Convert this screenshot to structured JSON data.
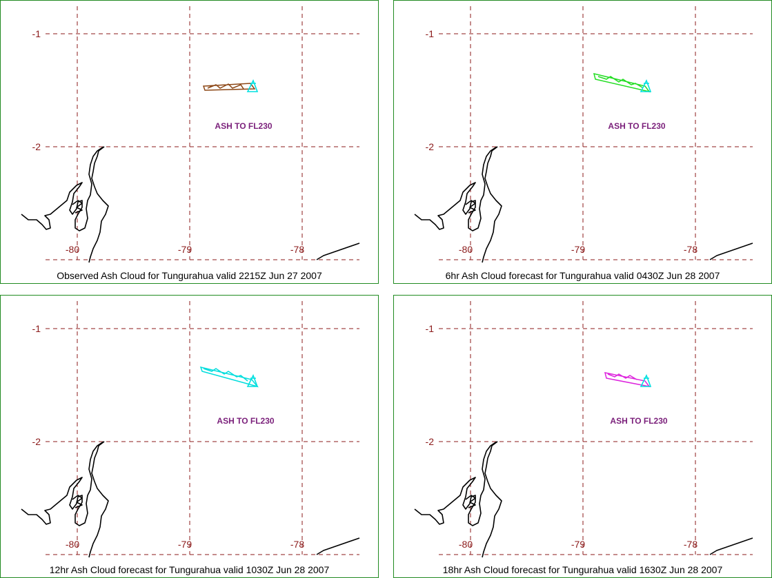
{
  "volcano": "Tungurahua",
  "axis_labels": {
    "lat": [
      "-1",
      "-2"
    ],
    "lon": [
      "-80",
      "-79",
      "-78"
    ]
  },
  "colors": {
    "panel_border": "#1f8a1f",
    "grid": "#8b1a1a",
    "coast": "#000000",
    "annotation": "#7a1f7a",
    "vent": "#00e0e0"
  },
  "panels": [
    {
      "caption": "Observed Ash Cloud for Tungurahua valid 2215Z Jun 27 2007",
      "annotation": "ASH TO FL230",
      "cloud_color": "#8b4513",
      "cloud_icon": "ash-cloud-plume"
    },
    {
      "caption": "6hr Ash Cloud forecast for Tungurahua valid 0430Z Jun 28 2007",
      "annotation": "ASH TO FL230",
      "cloud_color": "#22dd22",
      "cloud_icon": "ash-cloud-plume"
    },
    {
      "caption": "12hr Ash Cloud forecast for Tungurahua valid 1030Z Jun 28 2007",
      "annotation": "ASH TO FL230",
      "cloud_color": "#00dddd",
      "cloud_icon": "ash-cloud-plume"
    },
    {
      "caption": "18hr Ash Cloud forecast for Tungurahua valid 1630Z Jun 28 2007",
      "annotation": "ASH TO FL230",
      "cloud_color": "#dd22dd",
      "cloud_icon": "ash-cloud-plume"
    }
  ]
}
